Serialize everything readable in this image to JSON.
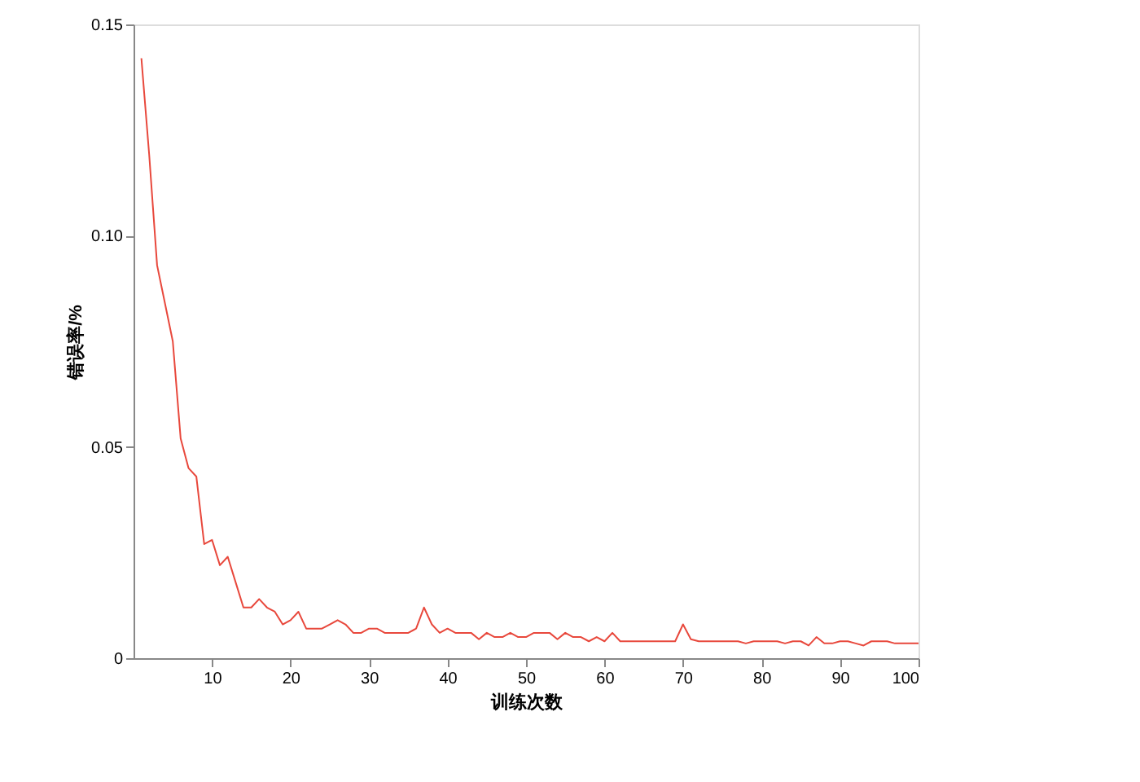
{
  "chart_data": {
    "type": "line",
    "xlabel": "训练次数",
    "ylabel": "错误率/%",
    "x": [
      1,
      2,
      3,
      4,
      5,
      6,
      7,
      8,
      9,
      10,
      11,
      12,
      13,
      14,
      15,
      16,
      17,
      18,
      19,
      20,
      21,
      22,
      23,
      24,
      25,
      26,
      27,
      28,
      29,
      30,
      31,
      32,
      33,
      34,
      35,
      36,
      37,
      38,
      39,
      40,
      41,
      42,
      43,
      44,
      45,
      46,
      47,
      48,
      49,
      50,
      51,
      52,
      53,
      54,
      55,
      56,
      57,
      58,
      59,
      60,
      61,
      62,
      63,
      64,
      65,
      66,
      67,
      68,
      69,
      70,
      71,
      72,
      73,
      74,
      75,
      76,
      77,
      78,
      79,
      80,
      81,
      82,
      83,
      84,
      85,
      86,
      87,
      88,
      89,
      90,
      91,
      92,
      93,
      94,
      95,
      96,
      97,
      98,
      99,
      100
    ],
    "series": [
      {
        "color": "#e8483c",
        "values": [
          0.142,
          0.119,
          0.093,
          0.084,
          0.075,
          0.052,
          0.045,
          0.043,
          0.027,
          0.028,
          0.022,
          0.024,
          0.018,
          0.012,
          0.012,
          0.014,
          0.012,
          0.011,
          0.008,
          0.009,
          0.011,
          0.007,
          0.007,
          0.007,
          0.008,
          0.009,
          0.008,
          0.006,
          0.006,
          0.007,
          0.007,
          0.006,
          0.006,
          0.006,
          0.006,
          0.007,
          0.012,
          0.008,
          0.006,
          0.007,
          0.006,
          0.006,
          0.006,
          0.0045,
          0.006,
          0.005,
          0.005,
          0.006,
          0.005,
          0.005,
          0.006,
          0.006,
          0.006,
          0.0045,
          0.006,
          0.005,
          0.005,
          0.004,
          0.005,
          0.004,
          0.006,
          0.004,
          0.004,
          0.004,
          0.004,
          0.004,
          0.004,
          0.004,
          0.004,
          0.008,
          0.0045,
          0.004,
          0.004,
          0.004,
          0.004,
          0.004,
          0.004,
          0.0035,
          0.004,
          0.004,
          0.004,
          0.004,
          0.0035,
          0.004,
          0.004,
          0.003,
          0.005,
          0.0035,
          0.0035,
          0.004,
          0.004,
          0.0035,
          0.003,
          0.004,
          0.004,
          0.004,
          0.0035,
          0.0035,
          0.0035,
          0.0035
        ]
      }
    ],
    "xlim": [
      0,
      100
    ],
    "xticks": [
      10,
      20,
      30,
      40,
      50,
      60,
      70,
      80,
      90,
      100
    ],
    "ylim": [
      0,
      0.15
    ],
    "yticks": [
      0,
      0.05,
      {
        "value": 0.1,
        "label": "0.10"
      },
      0.15
    ],
    "grid": false,
    "marker": "none",
    "line_style": "solid"
  }
}
